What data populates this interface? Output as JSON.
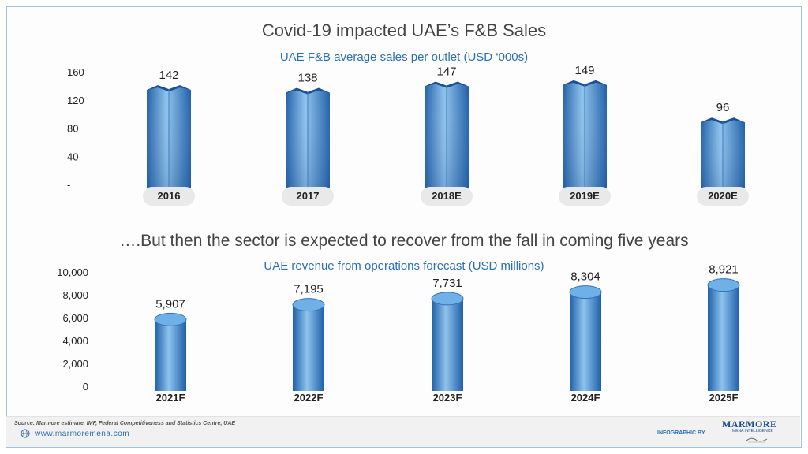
{
  "title": "Covid-19 impacted UAE’s F&B Sales",
  "headline2": "….But then the sector is expected to recover from the fall in coming five years",
  "chart_data": [
    {
      "type": "bar",
      "title": "UAE F&B average sales per outlet (USD ‘000s)",
      "categories": [
        "2016",
        "2017",
        "2018E",
        "2019E",
        "2020E"
      ],
      "values": [
        142,
        138,
        147,
        149,
        96
      ],
      "ylim": [
        0,
        160
      ],
      "yticks": [
        "-",
        "40",
        "80",
        "120",
        "160"
      ],
      "ytick_values": [
        0,
        40,
        80,
        120,
        160
      ],
      "xlabel": "",
      "ylabel": "",
      "grid": false
    },
    {
      "type": "bar",
      "title": "UAE revenue from operations forecast (USD millions)",
      "categories": [
        "2021F",
        "2022F",
        "2023F",
        "2024F",
        "2025F"
      ],
      "values": [
        5907,
        7195,
        7731,
        8304,
        8921
      ],
      "labels": [
        "5,907",
        "7,195",
        "7,731",
        "8,304",
        "8,921"
      ],
      "ylim": [
        0,
        10000
      ],
      "yticks": [
        "0",
        "2,000",
        "4,000",
        "6,000",
        "8,000",
        "10,000"
      ],
      "ytick_values": [
        0,
        2000,
        4000,
        6000,
        8000,
        10000
      ],
      "xlabel": "",
      "ylabel": "",
      "grid": false
    }
  ],
  "footer": {
    "source": "Source: Marmore estimate, IMF, Federal Competitiveness and Statistics Centre, UAE",
    "website": "www.marmoremena.com",
    "infographic_by": "INFOGRAPHIC BY",
    "brand": "MARMORE",
    "brand_sub": "MENA INTELLIGENCE"
  },
  "colors": {
    "bar_dark": "#1f5fa8",
    "bar_light": "#8ec3ec",
    "title_blue": "#2a6fb5",
    "label_pill": "#e9e9e9"
  }
}
